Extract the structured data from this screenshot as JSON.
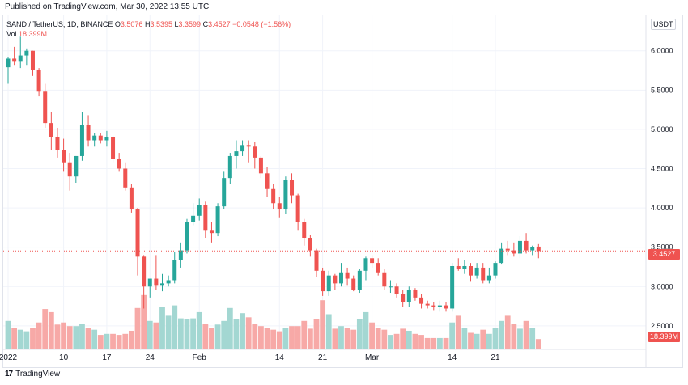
{
  "published": "Published on TradingView.com, Mar 30, 2022 13:55 UTC",
  "legend": {
    "symbol": "SAND / TetherUS, 1D, BINANCE",
    "open_key": "O",
    "open": "3.5076",
    "high_key": "H",
    "high": "3.5395",
    "low_key": "L",
    "low": "3.3599",
    "close_key": "C",
    "close": "3.4527",
    "change": "−0.0548 (−1.56%)",
    "vol_key": "Vol",
    "vol": "18.399M"
  },
  "currency": "USDT",
  "price_tag": "3.4527",
  "vol_tag": "18.399M",
  "footer": {
    "logo": "17",
    "brand": "TradingView"
  },
  "colors": {
    "up": "#26a69a",
    "down": "#ef5350",
    "vol_up": "#a3d7d2",
    "vol_down": "#f7a9a7"
  },
  "chart_data": {
    "type": "candlestick",
    "yticks": [
      "6.0000",
      "5.5000",
      "5.0000",
      "4.5000",
      "4.0000",
      "3.5000",
      "3.0000",
      "2.5000"
    ],
    "ylim": [
      2.2,
      6.45
    ],
    "xticks": [
      "2022",
      "10",
      "17",
      "24",
      "Feb",
      "14",
      "21",
      "Mar",
      "14",
      "21"
    ],
    "xtick_days": [
      0,
      9,
      16,
      23,
      31,
      44,
      51,
      59,
      72,
      79
    ],
    "last_price": 3.4527,
    "candles": [
      [
        5.79,
        5.92,
        5.58,
        5.9,
        0.55
      ],
      [
        5.9,
        6.05,
        5.82,
        5.86,
        0.42
      ],
      [
        5.86,
        6.18,
        5.78,
        5.94,
        0.38
      ],
      [
        5.94,
        6.03,
        5.82,
        6.0,
        0.35
      ],
      [
        6.0,
        6.0,
        5.68,
        5.76,
        0.42
      ],
      [
        5.76,
        5.78,
        5.42,
        5.48,
        0.52
      ],
      [
        5.48,
        5.58,
        5.02,
        5.08,
        0.78
      ],
      [
        5.08,
        5.22,
        4.74,
        4.9,
        0.72
      ],
      [
        4.9,
        5.02,
        4.64,
        4.74,
        0.48
      ],
      [
        4.74,
        4.88,
        4.46,
        4.58,
        0.52
      ],
      [
        4.58,
        4.7,
        4.22,
        4.4,
        0.45
      ],
      [
        4.4,
        4.66,
        4.32,
        4.66,
        0.45
      ],
      [
        4.66,
        5.22,
        4.6,
        5.06,
        0.5
      ],
      [
        5.06,
        5.18,
        4.78,
        4.86,
        0.42
      ],
      [
        4.86,
        4.95,
        4.78,
        4.92,
        0.38
      ],
      [
        4.92,
        4.95,
        4.82,
        4.86,
        0.28
      ],
      [
        4.86,
        4.98,
        4.78,
        4.9,
        0.3
      ],
      [
        4.9,
        4.92,
        4.58,
        4.62,
        0.3
      ],
      [
        4.62,
        4.7,
        4.46,
        4.5,
        0.28
      ],
      [
        4.5,
        4.58,
        4.22,
        4.26,
        0.3
      ],
      [
        4.26,
        4.3,
        3.94,
        3.98,
        0.36
      ],
      [
        3.98,
        4.0,
        3.14,
        3.38,
        0.8
      ],
      [
        3.38,
        3.4,
        2.72,
        3.0,
        1.05
      ],
      [
        3.0,
        3.1,
        2.86,
        3.1,
        0.55
      ],
      [
        3.1,
        3.4,
        2.96,
        3.02,
        0.52
      ],
      [
        3.02,
        3.16,
        2.94,
        3.04,
        0.82
      ],
      [
        3.04,
        3.14,
        3.0,
        3.08,
        0.65
      ],
      [
        3.08,
        3.44,
        3.04,
        3.34,
        0.85
      ],
      [
        3.34,
        3.56,
        3.24,
        3.46,
        0.6
      ],
      [
        3.46,
        3.86,
        3.42,
        3.82,
        0.58
      ],
      [
        3.82,
        4.06,
        3.78,
        3.9,
        0.6
      ],
      [
        3.9,
        4.12,
        3.84,
        4.04,
        0.72
      ],
      [
        4.04,
        4.08,
        3.62,
        3.72,
        0.5
      ],
      [
        3.72,
        3.82,
        3.56,
        3.68,
        0.42
      ],
      [
        3.68,
        4.06,
        3.64,
        4.02,
        0.48
      ],
      [
        4.02,
        4.46,
        3.98,
        4.38,
        0.55
      ],
      [
        4.38,
        4.7,
        4.3,
        4.66,
        0.8
      ],
      [
        4.66,
        4.86,
        4.5,
        4.72,
        0.58
      ],
      [
        4.72,
        4.86,
        4.66,
        4.8,
        0.7
      ],
      [
        4.8,
        4.86,
        4.58,
        4.78,
        0.62
      ],
      [
        4.78,
        4.84,
        4.5,
        4.64,
        0.5
      ],
      [
        4.64,
        4.66,
        4.38,
        4.44,
        0.45
      ],
      [
        4.44,
        4.52,
        4.14,
        4.24,
        0.42
      ],
      [
        4.24,
        4.3,
        3.98,
        4.06,
        0.38
      ],
      [
        4.06,
        4.14,
        3.88,
        3.98,
        0.35
      ],
      [
        3.98,
        4.4,
        3.92,
        4.36,
        0.42
      ],
      [
        4.36,
        4.44,
        4.06,
        4.16,
        0.45
      ],
      [
        4.16,
        4.18,
        3.72,
        3.82,
        0.45
      ],
      [
        3.82,
        3.86,
        3.52,
        3.62,
        0.55
      ],
      [
        3.62,
        3.66,
        3.38,
        3.46,
        0.4
      ],
      [
        3.46,
        3.48,
        3.12,
        3.2,
        0.58
      ],
      [
        3.2,
        3.24,
        2.88,
        2.94,
        0.95
      ],
      [
        2.94,
        3.2,
        2.88,
        3.14,
        0.68
      ],
      [
        3.14,
        3.16,
        2.96,
        3.04,
        0.4
      ],
      [
        3.04,
        3.3,
        3.0,
        3.18,
        0.45
      ],
      [
        3.18,
        3.24,
        3.02,
        3.1,
        0.42
      ],
      [
        3.1,
        3.14,
        2.94,
        2.96,
        0.38
      ],
      [
        2.96,
        3.22,
        2.92,
        3.2,
        0.58
      ],
      [
        3.2,
        3.38,
        3.08,
        3.36,
        0.72
      ],
      [
        3.36,
        3.4,
        3.24,
        3.3,
        0.52
      ],
      [
        3.3,
        3.36,
        3.14,
        3.18,
        0.42
      ],
      [
        3.18,
        3.22,
        2.96,
        3.0,
        0.38
      ],
      [
        3.0,
        3.08,
        2.92,
        3.0,
        0.28
      ],
      [
        3.0,
        3.04,
        2.86,
        2.9,
        0.3
      ],
      [
        2.9,
        2.96,
        2.74,
        2.8,
        0.4
      ],
      [
        2.8,
        3.0,
        2.74,
        2.96,
        0.36
      ],
      [
        2.96,
        2.98,
        2.82,
        2.86,
        0.3
      ],
      [
        2.86,
        2.9,
        2.72,
        2.78,
        0.28
      ],
      [
        2.78,
        2.82,
        2.72,
        2.76,
        0.22
      ],
      [
        2.76,
        2.8,
        2.7,
        2.74,
        0.22
      ],
      [
        2.74,
        2.82,
        2.68,
        2.76,
        0.22
      ],
      [
        2.76,
        2.8,
        2.68,
        2.72,
        0.22
      ],
      [
        2.72,
        3.3,
        2.68,
        3.26,
        0.52
      ],
      [
        3.26,
        3.36,
        3.2,
        3.22,
        0.65
      ],
      [
        3.22,
        3.34,
        3.16,
        3.26,
        0.42
      ],
      [
        3.26,
        3.3,
        3.06,
        3.14,
        0.32
      ],
      [
        3.14,
        3.3,
        3.1,
        3.24,
        0.3
      ],
      [
        3.24,
        3.3,
        3.04,
        3.08,
        0.38
      ],
      [
        3.08,
        3.24,
        3.04,
        3.14,
        0.3
      ],
      [
        3.14,
        3.32,
        3.1,
        3.3,
        0.42
      ],
      [
        3.3,
        3.56,
        3.28,
        3.48,
        0.55
      ],
      [
        3.48,
        3.58,
        3.4,
        3.46,
        0.65
      ],
      [
        3.46,
        3.56,
        3.38,
        3.42,
        0.5
      ],
      [
        3.42,
        3.64,
        3.36,
        3.58,
        0.4
      ],
      [
        3.58,
        3.68,
        3.42,
        3.46,
        0.55
      ],
      [
        3.46,
        3.52,
        3.4,
        3.5,
        0.42
      ],
      [
        3.5076,
        3.5395,
        3.3599,
        3.4527,
        0.2
      ]
    ]
  }
}
